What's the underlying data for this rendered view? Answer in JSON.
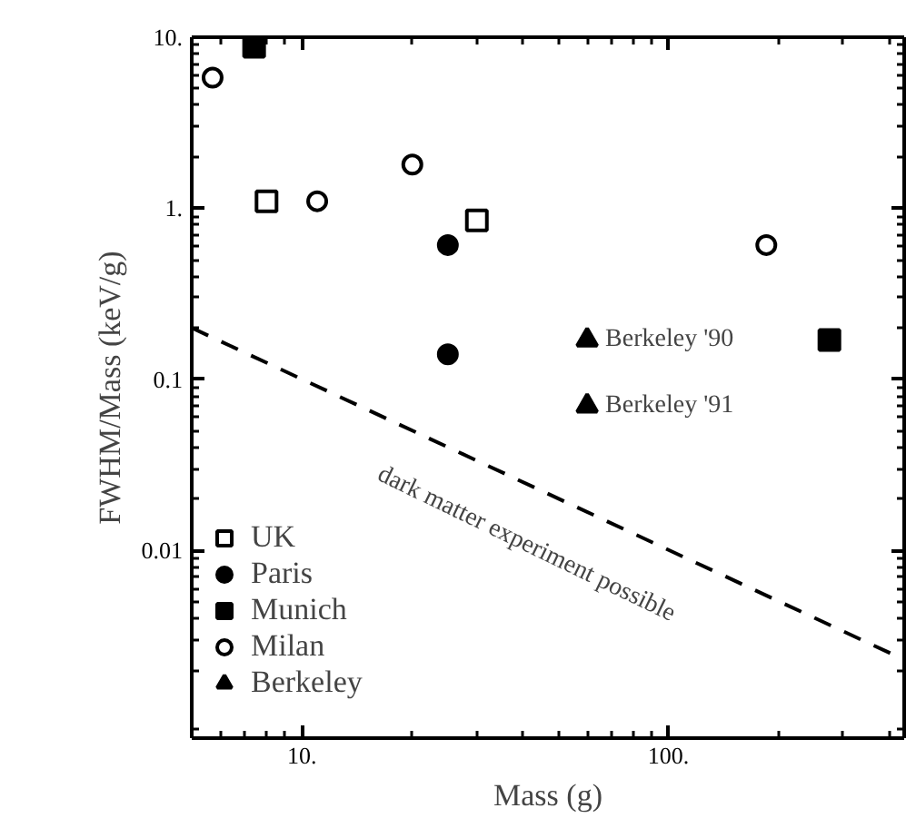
{
  "chart_data": {
    "type": "scatter",
    "xlabel": "Mass (g)",
    "ylabel": "FWHM/Mass (keV/g)",
    "log": "xy",
    "xlim": [
      5,
      440
    ],
    "ylim": [
      0.0008,
      10
    ],
    "xticks": [
      {
        "value": 10,
        "label": "10."
      },
      {
        "value": 100,
        "label": "100."
      }
    ],
    "yticks": [
      {
        "value": 0.01,
        "label": "0.01"
      },
      {
        "value": 0.1,
        "label": "0.1"
      },
      {
        "value": 1,
        "label": "1."
      },
      {
        "value": 10,
        "label": "10."
      }
    ],
    "legend": "bottom left",
    "grid": false,
    "series": [
      {
        "name": "UK",
        "color": "#ffffff",
        "marker": "square",
        "x": [
          8,
          30
        ],
        "values": [
          1.1,
          0.85
        ]
      },
      {
        "name": "Paris",
        "color": "#000000",
        "marker": "circle",
        "x": [
          25,
          25
        ],
        "values": [
          0.61,
          0.14
        ]
      },
      {
        "name": "Munich",
        "color": "#000000",
        "marker": "square",
        "x": [
          7.4,
          275
        ],
        "values": [
          8.8,
          0.17
        ]
      },
      {
        "name": "Milan",
        "color": "#ffffff",
        "marker": "circle",
        "x": [
          5.7,
          11,
          20,
          185
        ],
        "values": [
          5.8,
          1.1,
          1.8,
          0.61
        ]
      },
      {
        "name": "Berkeley",
        "color": "#000000",
        "marker": "triangle",
        "x": [
          60,
          60
        ],
        "values": [
          0.17,
          0.07
        ]
      },
      {
        "type": "line",
        "color": "#000000",
        "line_style": "dashed",
        "x": [
          5,
          440
        ],
        "values": [
          0.2,
          0.0023
        ]
      }
    ],
    "annotations": [
      {
        "text": "Berkeley '90",
        "x": 60,
        "y": 0.17
      },
      {
        "text": "Berkeley '91",
        "x": 60,
        "y": 0.07
      },
      "dark matter experiment possible"
    ]
  }
}
